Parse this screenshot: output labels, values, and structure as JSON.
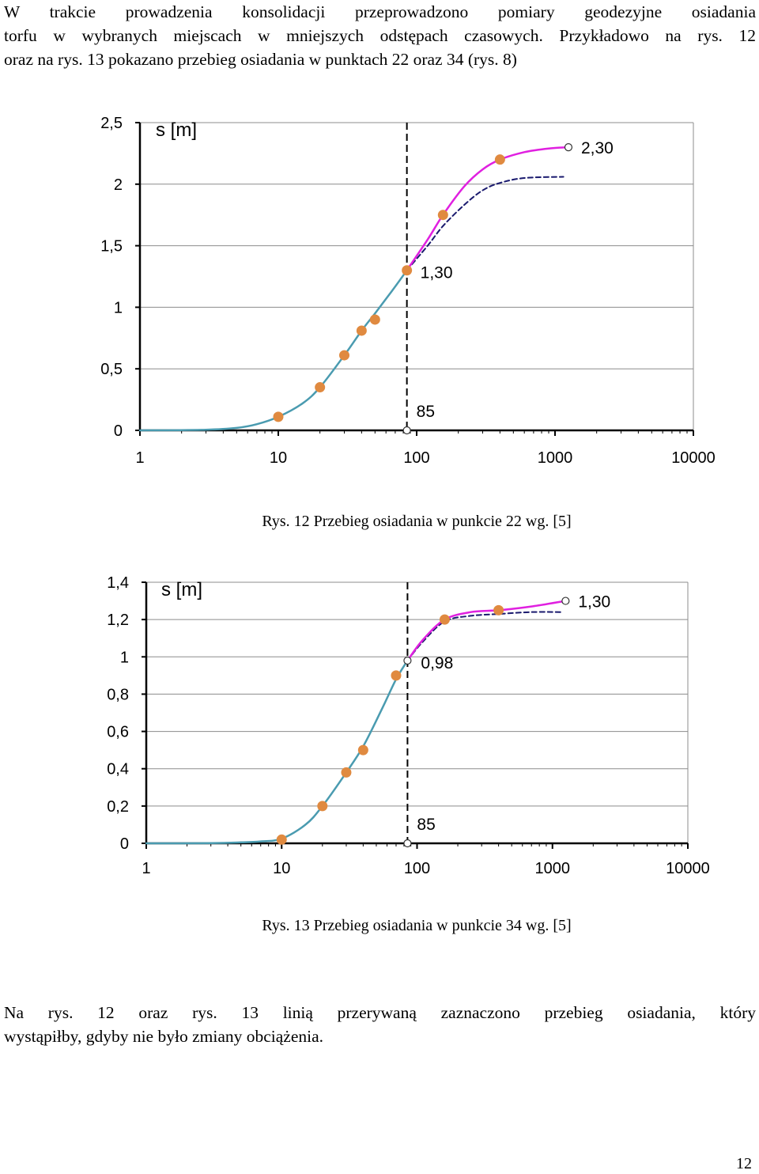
{
  "intro": {
    "lines": [
      "W trakcie prowadzenia konsolidacji przeprowadzono pomiary geodezyjne osiadania",
      "torfu w wybranych miejscach w mniejszych odstępach czasowych. Przykładowo na rys. 12",
      "oraz na rys. 13 pokazano przebieg osiadania w punktach 22 oraz 34 (rys. 8)"
    ]
  },
  "figures": [
    {
      "caption": "Rys. 12  Przebieg osiadania w punkcie 22 wg. [5]"
    },
    {
      "caption": "Rys. 13  Przebieg osiadania w punkcie 34 wg. [5]"
    }
  ],
  "outro": {
    "lines": [
      "Na rys. 12 oraz rys. 13  linią przerywaną zaznaczono przebieg osiadania, który",
      "wystąpiłby, gdyby nie było zmiany obciążenia."
    ]
  },
  "page_number": "12",
  "colors": {
    "measured_curve": "#4a9bb0",
    "changed_load_curve": "#e020e0",
    "predicted_curve_dashed": "#1a1a6e",
    "measurement_points": "#e08a40"
  },
  "chart_data": [
    {
      "type": "scatter",
      "x_scale": "log",
      "xlim": [
        1,
        10000
      ],
      "ylim": [
        0,
        2.5
      ],
      "x_ticks": [
        "1",
        "10",
        "100",
        "1000",
        "10000"
      ],
      "y_ticks": [
        "0",
        "0,5",
        "1",
        "1,5",
        "2",
        "2,5"
      ],
      "ylabel": "s [m]",
      "grid": "horizontal",
      "x_marker": {
        "x": 85,
        "label": "85"
      },
      "points": [
        {
          "x": 10,
          "y": 0.11
        },
        {
          "x": 20,
          "y": 0.35
        },
        {
          "x": 30,
          "y": 0.61
        },
        {
          "x": 40,
          "y": 0.81
        },
        {
          "x": 50,
          "y": 0.9
        },
        {
          "x": 85,
          "y": 1.3
        },
        {
          "x": 155,
          "y": 1.75
        },
        {
          "x": 400,
          "y": 2.2
        }
      ],
      "series": [
        {
          "values": [
            [
              1,
              0
            ],
            [
              3,
              0.005
            ],
            [
              5,
              0.02
            ],
            [
              7,
              0.05
            ],
            [
              10,
              0.11
            ],
            [
              15,
              0.22
            ],
            [
              20,
              0.35
            ],
            [
              30,
              0.61
            ],
            [
              40,
              0.81
            ],
            [
              50,
              0.95
            ],
            [
              65,
              1.12
            ],
            [
              85,
              1.3
            ]
          ]
        },
        {
          "values": [
            [
              85,
              1.3
            ],
            [
              120,
              1.55
            ],
            [
              155,
              1.75
            ],
            [
              220,
              1.98
            ],
            [
              300,
              2.12
            ],
            [
              400,
              2.2
            ],
            [
              600,
              2.26
            ],
            [
              900,
              2.29
            ],
            [
              1250,
              2.3
            ]
          ]
        },
        {
          "values": [
            [
              85,
              1.3
            ],
            [
              120,
              1.5
            ],
            [
              155,
              1.66
            ],
            [
              220,
              1.83
            ],
            [
              300,
              1.95
            ],
            [
              400,
              2.01
            ],
            [
              600,
              2.05
            ],
            [
              1150,
              2.06
            ]
          ]
        }
      ],
      "annotations": [
        {
          "x": 85,
          "y": 1.3,
          "text": "1,30"
        },
        {
          "x": 1250,
          "y": 2.3,
          "text": "2,30"
        }
      ]
    },
    {
      "type": "scatter",
      "x_scale": "log",
      "xlim": [
        1,
        10000
      ],
      "ylim": [
        0,
        1.4
      ],
      "x_ticks": [
        "1",
        "10",
        "100",
        "1000",
        "10000"
      ],
      "y_ticks": [
        "0",
        "0,2",
        "0,4",
        "0,6",
        "0,8",
        "1",
        "1,2",
        "1,4"
      ],
      "ylabel": "s [m]",
      "grid": "horizontal",
      "x_marker": {
        "x": 85,
        "label": "85"
      },
      "points": [
        {
          "x": 10,
          "y": 0.02
        },
        {
          "x": 20,
          "y": 0.2
        },
        {
          "x": 30,
          "y": 0.38
        },
        {
          "x": 40,
          "y": 0.5
        },
        {
          "x": 70,
          "y": 0.9
        },
        {
          "x": 85,
          "y": 0.98
        },
        {
          "x": 160,
          "y": 1.2
        },
        {
          "x": 400,
          "y": 1.25
        }
      ],
      "series": [
        {
          "values": [
            [
              1,
              0
            ],
            [
              3,
              0.001
            ],
            [
              5,
              0.005
            ],
            [
              7,
              0.01
            ],
            [
              10,
              0.025
            ],
            [
              15,
              0.1
            ],
            [
              20,
              0.2
            ],
            [
              30,
              0.38
            ],
            [
              40,
              0.52
            ],
            [
              55,
              0.72
            ],
            [
              70,
              0.88
            ],
            [
              85,
              0.98
            ]
          ]
        },
        {
          "values": [
            [
              85,
              0.98
            ],
            [
              110,
              1.09
            ],
            [
              160,
              1.2
            ],
            [
              250,
              1.24
            ],
            [
              400,
              1.25
            ],
            [
              700,
              1.27
            ],
            [
              1250,
              1.3
            ]
          ]
        },
        {
          "values": [
            [
              85,
              0.98
            ],
            [
              110,
              1.08
            ],
            [
              160,
              1.19
            ],
            [
              250,
              1.22
            ],
            [
              400,
              1.23
            ],
            [
              700,
              1.24
            ],
            [
              1150,
              1.24
            ]
          ]
        }
      ],
      "annotations": [
        {
          "x": 85,
          "y": 0.98,
          "text": "0,98"
        },
        {
          "x": 1250,
          "y": 1.3,
          "text": "1,30"
        }
      ]
    }
  ]
}
